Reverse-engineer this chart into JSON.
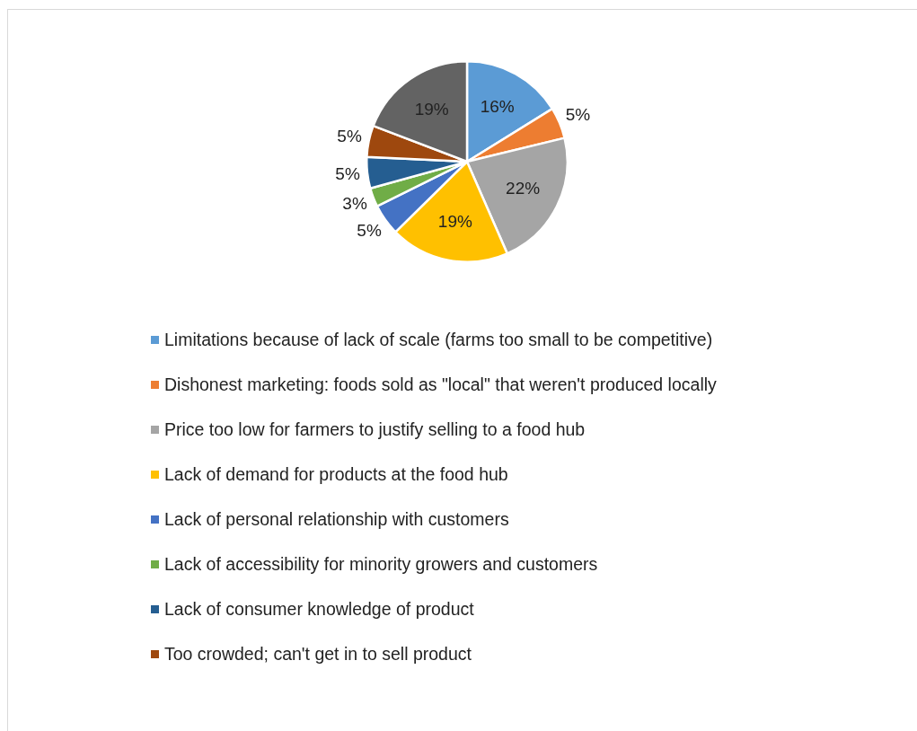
{
  "chart_data": {
    "type": "pie",
    "categories": [
      "Limitations because of lack of scale (farms too small to be competitive)",
      "Dishonest marketing: foods sold as \"local\" that weren't produced locally",
      "Price too low for farmers to justify selling to a food hub",
      "Lack of demand for products at the food hub",
      "Lack of personal relationship with customers",
      "Lack of accessibility for minority growers and customers",
      "Lack of consumer knowledge of product",
      "Too crowded; can't get in to sell product",
      null
    ],
    "values": [
      16,
      5,
      22,
      19,
      5,
      3,
      5,
      5,
      19
    ],
    "colors": [
      "#5b9bd5",
      "#ed7d31",
      "#a5a5a5",
      "#ffc000",
      "#4472c4",
      "#70ad47",
      "#255e91",
      "#9e480e",
      "#636363"
    ],
    "value_labels": [
      "16%",
      "5%",
      "22%",
      "19%",
      "5%",
      "3%",
      "5%",
      "5%",
      "19%"
    ],
    "legend": "bottom"
  }
}
